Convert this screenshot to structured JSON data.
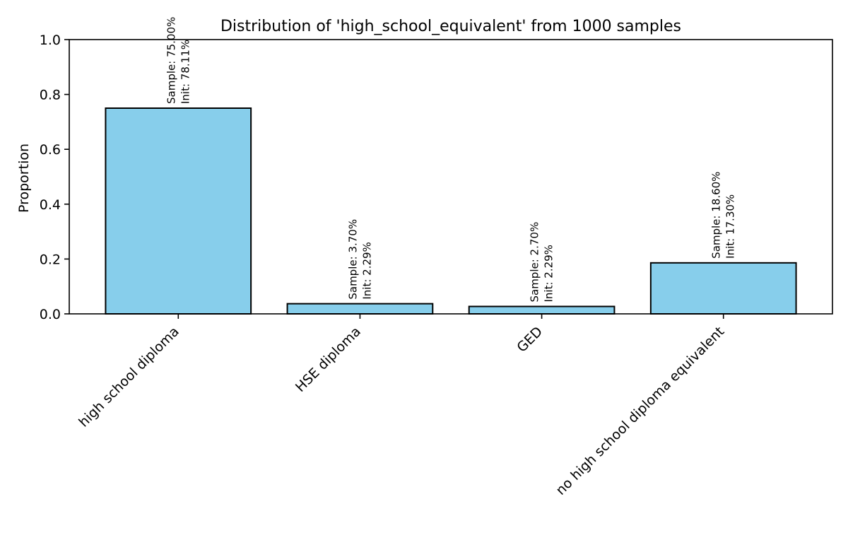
{
  "chart_data": {
    "type": "bar",
    "title": "Distribution of 'high_school_equivalent' from 1000 samples",
    "xlabel": "",
    "ylabel": "Proportion",
    "categories": [
      "high school diploma",
      "HSE diploma",
      "GED",
      "no high school diploma equivalent"
    ],
    "values": [
      0.75,
      0.037,
      0.027,
      0.186
    ],
    "data_labels": [
      {
        "sample": "Sample: 75.00%",
        "init": "Init: 78.11%"
      },
      {
        "sample": "Sample: 3.70%",
        "init": "Init: 2.29%"
      },
      {
        "sample": "Sample: 2.70%",
        "init": "Init: 2.29%"
      },
      {
        "sample": "Sample: 18.60%",
        "init": "Init: 17.30%"
      }
    ],
    "ylim": [
      0,
      1.0
    ],
    "yticks": [
      "0.0",
      "0.2",
      "0.4",
      "0.6",
      "0.8",
      "1.0"
    ],
    "grid": false,
    "legend": "none",
    "colors": {
      "bar_fill": "#87ceeb",
      "bar_edge": "#000000"
    }
  }
}
